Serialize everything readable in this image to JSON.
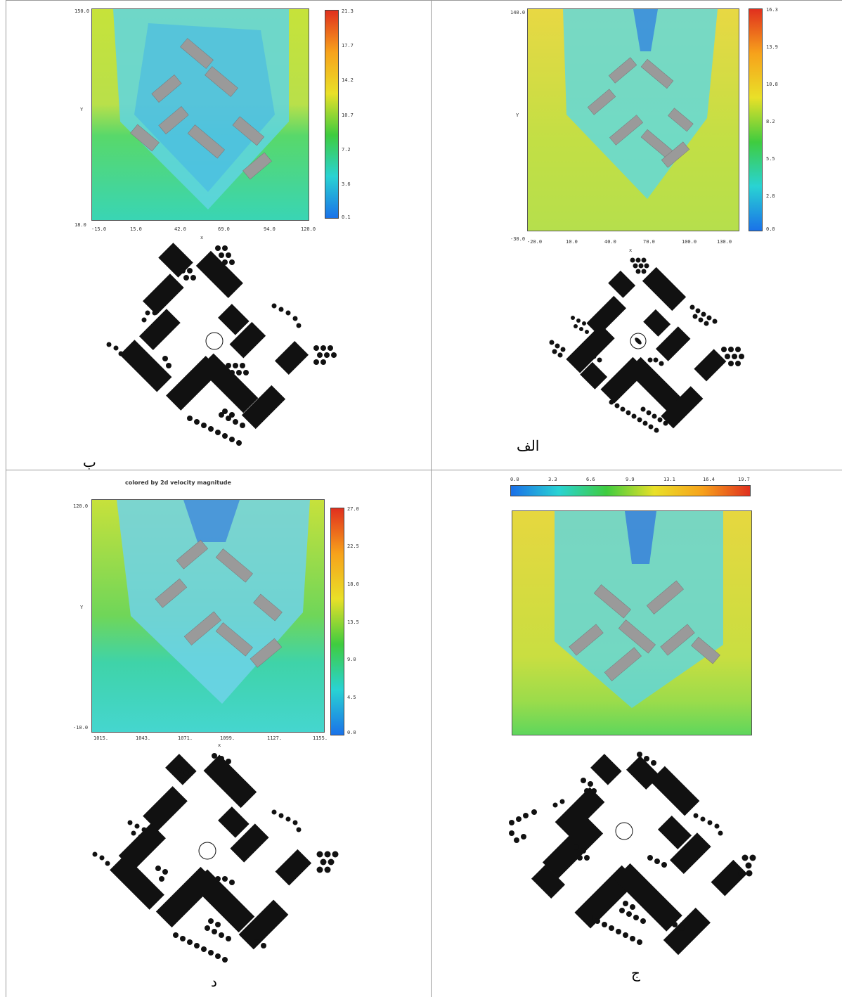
{
  "captions": {
    "b": "ب",
    "alef": "الف",
    "dal": "د",
    "jim": "ج"
  },
  "panel_b": {
    "colorbar_ticks": [
      "21.3",
      "17.7",
      "14.2",
      "10.7",
      "7.2",
      "3.6",
      "0.1"
    ],
    "y_ticks": [
      "150.0",
      "18.0"
    ],
    "x_ticks": [
      "-15.0",
      "15.0",
      "42.0",
      "69.0",
      "94.0",
      "120.0"
    ],
    "x_label": "x",
    "y_label": "Y"
  },
  "panel_alef": {
    "colorbar_ticks": [
      "16.3",
      "13.9",
      "10.8",
      "8.2",
      "5.5",
      "2.8",
      "0.0"
    ],
    "y_ticks": [
      "140.0",
      "-30.0"
    ],
    "x_ticks": [
      "-20.0",
      "10.0",
      "40.0",
      "70.0",
      "100.0",
      "130.0"
    ],
    "x_label": "x",
    "y_label": "Y"
  },
  "panel_dal": {
    "title": "colored by 2d velocity magnitude",
    "colorbar_ticks": [
      "27.0",
      "22.5",
      "18.0",
      "13.5",
      "9.0",
      "4.5",
      "0.0"
    ],
    "y_ticks": [
      "120.0",
      "-10.0"
    ],
    "x_ticks": [
      "1015.",
      "1043.",
      "1071.",
      "1099.",
      "1127.",
      "1155."
    ],
    "x_label": "x",
    "y_label": "Y"
  },
  "panel_jim": {
    "colorbar_ticks": [
      "0.0",
      "3.3",
      "6.6",
      "9.9",
      "13.1",
      "16.4",
      "19.7"
    ]
  }
}
